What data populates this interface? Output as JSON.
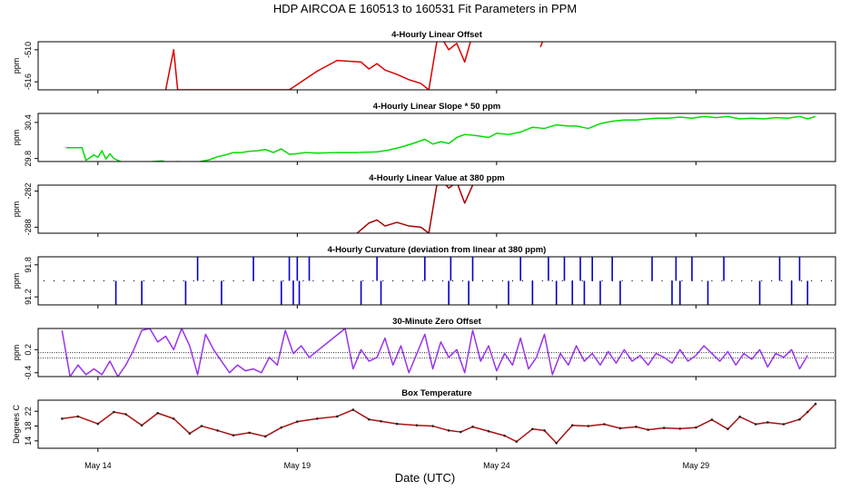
{
  "title": "HDP   AIRCOA E   160513 to 160531   Fit Parameters in PPM",
  "xlabel": "Date (UTC)",
  "x_ticks": [
    "May 14",
    "May 19",
    "May 24",
    "May 29"
  ],
  "chart_data": {
    "type": "line",
    "x_unit": "day of May 2016",
    "x_range": [
      12.5,
      32.5
    ],
    "x_tick_values": [
      14,
      19,
      24,
      29
    ],
    "panels": [
      {
        "title": "4-Hourly Linear Offset",
        "ylabel": "ppm",
        "yticks": [
          "-516",
          "-510"
        ],
        "ytick_values": [
          -516,
          -510
        ],
        "ylim": [
          -517.5,
          -508.5
        ],
        "color": "#dd0000",
        "style": "line",
        "series_x": [
          15.7,
          15.9,
          16.0,
          18.8,
          19.5,
          20.0,
          20.6,
          20.8,
          21.0,
          21.2,
          21.5,
          21.8,
          22.1,
          22.3,
          22.5,
          22.6,
          22.8,
          23.0,
          23.2,
          23.4
        ],
        "series_y": [
          -517.5,
          -510.0,
          -517.5,
          -517.5,
          -514.0,
          -512.0,
          -512.3,
          -513.6,
          -512.6,
          -513.8,
          -514.6,
          -515.6,
          -516.3,
          -517.5,
          -508.5,
          -507.5,
          -510.0,
          -508.8,
          -512.3,
          -507.0
        ],
        "extra_segments": [
          [
            [
              25.1,
              -509.5
            ],
            [
              25.15,
              -508.5
            ]
          ]
        ]
      },
      {
        "title": "4-Hourly Linear Slope * 50 ppm",
        "ylabel": "ppm",
        "yticks": [
          "29.8",
          "30.4"
        ],
        "ytick_values": [
          29.8,
          30.4
        ],
        "ylim": [
          29.75,
          30.55
        ],
        "color": "#00dd00",
        "style": "line",
        "series_x": [
          13.2,
          13.5,
          13.6,
          13.7,
          13.9,
          14.0,
          14.1,
          14.2,
          14.3,
          14.4,
          14.6,
          14.8,
          15.0,
          15.2,
          15.4,
          15.6,
          15.8,
          16.0,
          16.2,
          16.5,
          16.8,
          17.0,
          17.2,
          17.4,
          17.6,
          17.8,
          18.0,
          18.2,
          18.4,
          18.6,
          18.8,
          19.0,
          19.2,
          19.5,
          20.0,
          20.5,
          21.0,
          21.3,
          21.6,
          21.9,
          22.2,
          22.4,
          22.6,
          22.8,
          23.0,
          23.2,
          23.5,
          23.8,
          24.0,
          24.3,
          24.6,
          24.9,
          25.2,
          25.5,
          25.8,
          26.0,
          26.3,
          26.6,
          26.9,
          27.2,
          27.5,
          27.8,
          28.0,
          28.3,
          28.6,
          28.9,
          29.2,
          29.5,
          29.8,
          30.1,
          30.4,
          30.7,
          31.0,
          31.3,
          31.6,
          31.8,
          32.0
        ],
        "series_y": [
          29.98,
          29.98,
          29.98,
          29.77,
          29.86,
          29.82,
          29.93,
          29.79,
          29.88,
          29.8,
          29.74,
          29.72,
          29.73,
          29.74,
          29.75,
          29.76,
          29.73,
          29.75,
          29.73,
          29.74,
          29.78,
          29.83,
          29.86,
          29.9,
          29.9,
          29.92,
          29.93,
          29.95,
          29.9,
          29.96,
          29.87,
          29.88,
          29.9,
          29.89,
          29.9,
          29.9,
          29.91,
          29.94,
          29.99,
          30.05,
          30.12,
          30.04,
          30.08,
          30.05,
          30.15,
          30.2,
          30.18,
          30.15,
          30.22,
          30.2,
          30.24,
          30.32,
          30.3,
          30.36,
          30.34,
          30.34,
          30.3,
          30.38,
          30.42,
          30.44,
          30.44,
          30.46,
          30.47,
          30.47,
          30.49,
          30.47,
          30.5,
          30.48,
          30.5,
          30.46,
          30.47,
          30.46,
          30.48,
          30.47,
          30.5,
          30.46,
          30.5
        ],
        "extra_segments": []
      },
      {
        "title": "4-Hourly Linear Value at 380 ppm",
        "ylabel": "ppm",
        "yticks": [
          "-288",
          "-282"
        ],
        "ytick_values": [
          -288,
          -282
        ],
        "ylim": [
          -289.0,
          -281.0
        ],
        "color": "#aa0000",
        "style": "line",
        "series_x": [
          20.5,
          20.8,
          21.0,
          21.2,
          21.5,
          21.8,
          22.1,
          22.3,
          22.5,
          22.6,
          22.8,
          23.0,
          23.2,
          23.4
        ],
        "series_y": [
          -289.0,
          -287.3,
          -286.8,
          -287.8,
          -287.2,
          -287.8,
          -288.0,
          -289.0,
          -281.0,
          -280.0,
          -281.5,
          -280.5,
          -284.0,
          -281.0
        ],
        "extra_segments": []
      },
      {
        "title": "4-Hourly Curvature (deviation from linear at 380 ppm)",
        "ylabel": "ppm",
        "yticks": [
          "91.2",
          "91.8"
        ],
        "ytick_values": [
          91.2,
          91.8
        ],
        "ylim": [
          91.05,
          91.95
        ],
        "color": "#0000cc",
        "style": "spikes",
        "baseline": 91.5,
        "series_x": [
          14.45,
          15.1,
          16.2,
          16.5,
          17.1,
          17.9,
          18.6,
          18.8,
          18.9,
          19.0,
          19.05,
          19.3,
          20.6,
          21.0,
          21.1,
          22.2,
          22.8,
          22.85,
          23.3,
          23.4,
          24.3,
          24.6,
          24.9,
          25.3,
          25.5,
          25.7,
          25.9,
          26.1,
          26.2,
          26.4,
          26.6,
          26.9,
          27.1,
          27.9,
          28.4,
          28.5,
          28.6,
          28.9,
          29.3,
          29.7,
          30.6,
          31.1,
          31.4,
          31.6,
          31.8
        ],
        "series_y": [
          91.05,
          91.05,
          91.05,
          91.95,
          91.05,
          91.95,
          91.05,
          91.95,
          91.05,
          91.95,
          91.05,
          91.95,
          91.05,
          91.95,
          91.05,
          91.95,
          91.05,
          91.95,
          91.05,
          91.95,
          91.05,
          91.95,
          91.05,
          91.95,
          91.05,
          91.95,
          91.05,
          91.95,
          91.05,
          91.95,
          91.05,
          91.95,
          91.05,
          91.95,
          91.05,
          91.95,
          91.05,
          91.95,
          91.05,
          91.95,
          91.05,
          91.95,
          91.05,
          91.95,
          91.05
        ],
        "extra_segments": []
      },
      {
        "title": "30-Minute Zero Offset",
        "ylabel": "ppm",
        "yticks": [
          "-0.4",
          "0.2"
        ],
        "ytick_values": [
          -0.4,
          0.2
        ],
        "ylim": [
          -0.5,
          0.75
        ],
        "color": "#9933ee",
        "style": "line",
        "hlines": [
          0.12,
          -0.02
        ],
        "series_x": [
          13.1,
          13.3,
          13.5,
          13.7,
          13.9,
          14.1,
          14.3,
          14.5,
          14.7,
          14.9,
          15.1,
          15.3,
          15.5,
          15.7,
          15.9,
          16.1,
          16.3,
          16.5,
          16.7,
          16.9,
          17.1,
          17.3,
          17.5,
          17.7,
          17.9,
          18.1,
          18.3,
          18.5,
          18.7,
          18.9,
          19.1,
          19.3,
          20.2,
          20.4,
          20.6,
          20.8,
          21.0,
          21.2,
          21.4,
          21.6,
          21.8,
          22.0,
          22.2,
          22.4,
          22.6,
          22.8,
          23.0,
          23.2,
          23.4,
          23.6,
          23.8,
          24.0,
          24.2,
          24.4,
          24.6,
          24.8,
          25.0,
          25.2,
          25.4,
          25.6,
          25.8,
          26.0,
          26.2,
          26.4,
          26.6,
          26.8,
          27.0,
          27.2,
          27.4,
          27.6,
          27.8,
          28.0,
          28.2,
          28.4,
          28.6,
          28.8,
          29.0,
          29.2,
          29.4,
          29.6,
          29.8,
          30.0,
          30.2,
          30.4,
          30.6,
          30.8,
          31.0,
          31.2,
          31.4,
          31.6,
          31.8
        ],
        "series_y": [
          0.7,
          -0.5,
          -0.2,
          -0.45,
          -0.3,
          -0.45,
          -0.1,
          -0.5,
          -0.2,
          0.2,
          0.7,
          0.75,
          0.4,
          0.55,
          0.2,
          0.75,
          0.3,
          -0.45,
          0.6,
          0.2,
          -0.1,
          -0.4,
          -0.2,
          -0.35,
          -0.3,
          -0.4,
          0.0,
          -0.2,
          0.7,
          0.1,
          0.3,
          0.0,
          0.75,
          -0.3,
          0.2,
          -0.1,
          0.0,
          0.5,
          -0.2,
          0.3,
          -0.4,
          0.1,
          0.6,
          -0.3,
          0.4,
          0.0,
          0.2,
          -0.4,
          0.7,
          -0.1,
          0.3,
          -0.35,
          0.1,
          -0.2,
          0.5,
          -0.3,
          0.0,
          0.6,
          -0.45,
          0.1,
          -0.2,
          0.3,
          -0.1,
          0.1,
          -0.2,
          0.15,
          -0.15,
          0.2,
          -0.1,
          0.05,
          -0.2,
          0.1,
          0.0,
          -0.15,
          0.2,
          -0.1,
          0.05,
          0.3,
          0.1,
          -0.1,
          0.15,
          -0.2,
          0.1,
          -0.05,
          0.2,
          -0.25,
          0.1,
          0.0,
          0.2,
          -0.3,
          0.05
        ],
        "extra_segments": []
      },
      {
        "title": "Box Temperature",
        "ylabel": "Degrees C",
        "yticks": [
          "14",
          "18",
          "22"
        ],
        "ytick_values": [
          14,
          18,
          22
        ],
        "ylim": [
          12.0,
          25.0
        ],
        "color": "#aa1111",
        "style": "line",
        "series_x": [
          13.1,
          13.5,
          14.0,
          14.4,
          14.7,
          15.1,
          15.5,
          15.9,
          16.3,
          16.6,
          17.0,
          17.4,
          17.8,
          18.2,
          18.6,
          19.0,
          19.5,
          20.0,
          20.4,
          20.8,
          21.1,
          21.5,
          22.0,
          22.4,
          22.8,
          23.1,
          23.4,
          23.8,
          24.2,
          24.5,
          24.9,
          25.2,
          25.5,
          25.9,
          26.3,
          26.7,
          27.1,
          27.5,
          27.8,
          28.2,
          28.6,
          29.0,
          29.4,
          29.8,
          30.1,
          30.5,
          30.8,
          31.2,
          31.6,
          31.8,
          32.0
        ],
        "series_y": [
          20.0,
          20.6,
          18.6,
          21.8,
          21.2,
          18.2,
          21.5,
          20.0,
          16.0,
          18.0,
          16.8,
          15.5,
          16.2,
          15.2,
          17.6,
          19.2,
          20.0,
          20.6,
          22.4,
          19.8,
          19.3,
          18.6,
          18.2,
          18.0,
          16.8,
          16.4,
          17.8,
          16.6,
          15.4,
          13.8,
          17.2,
          16.8,
          13.4,
          18.2,
          18.0,
          18.5,
          17.4,
          17.8,
          17.0,
          17.5,
          17.3,
          17.6,
          19.7,
          17.2,
          20.5,
          18.5,
          19.0,
          18.5,
          19.8,
          21.8,
          24.0
        ],
        "extra_segments": []
      }
    ]
  }
}
